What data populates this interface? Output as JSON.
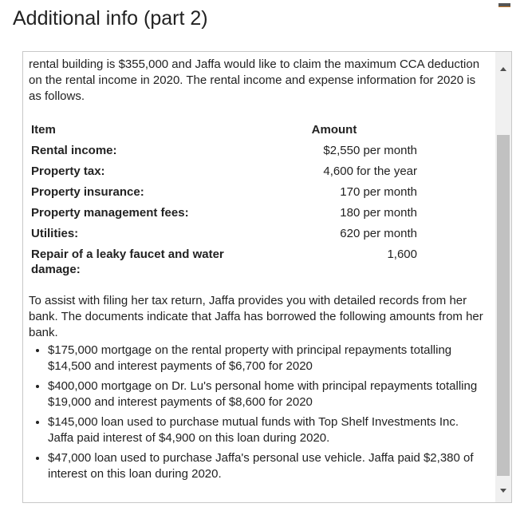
{
  "header": {
    "title": "Additional info (part 2)"
  },
  "content": {
    "intro": "rental building is $355,000 and Jaffa would like to claim the maximum CCA deduction on the rental income in 2020. The rental income and expense information for 2020 is as follows.",
    "table": {
      "headers": [
        "Item",
        "Amount"
      ],
      "rows": [
        {
          "item": "Rental income:",
          "amount": "$2,550 per month"
        },
        {
          "item": "Property tax:",
          "amount": "4,600 for the year"
        },
        {
          "item": "Property insurance:",
          "amount": "170 per month"
        },
        {
          "item": "Property management fees:",
          "amount": "180 per month"
        },
        {
          "item": "Utilities:",
          "amount": "620 per month"
        },
        {
          "item": "Repair of a leaky faucet and water damage:",
          "amount": "1,600"
        }
      ]
    },
    "paragraph2": "To assist with filing her tax return, Jaffa provides you with detailed records from her bank. The documents indicate that Jaffa has borrowed the following amounts from her bank.",
    "bullets": [
      "$175,000 mortgage on the rental property with principal repayments totalling $14,500 and interest payments of $6,700 for 2020",
      "$400,000 mortgage on Dr. Lu's personal home with principal repayments totalling $19,000 and interest payments of $8,600 for 2020",
      "$145,000 loan used to purchase mutual funds with Top Shelf Investments Inc. Jaffa paid interest of $4,900 on this loan during 2020.",
      "$47,000 loan used to purchase Jaffa's personal use vehicle. Jaffa paid $2,380 of interest on this loan during 2020."
    ]
  },
  "scrollbar": {
    "position_fraction": 0.28
  }
}
